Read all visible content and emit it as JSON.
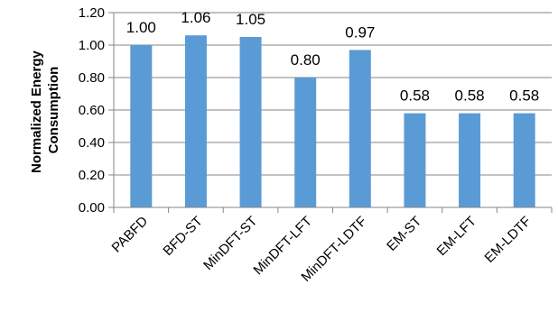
{
  "chart_data": {
    "type": "bar",
    "title": "",
    "xlabel": "",
    "ylabel_lines": [
      "Normalized Energy",
      "Consumption"
    ],
    "categories": [
      "PABFD",
      "BFD-ST",
      "MinDFT-ST",
      "MinDFT-LFT",
      "MinDFT-LDTF",
      "EM-ST",
      "EM-LFT",
      "EM-LDTF"
    ],
    "values": [
      1.0,
      1.06,
      1.05,
      0.8,
      0.97,
      0.58,
      0.58,
      0.58
    ],
    "value_labels": [
      "1.00",
      "1.06",
      "1.05",
      "0.80",
      "0.97",
      "0.58",
      "0.58",
      "0.58"
    ],
    "ylim": [
      0,
      1.2
    ],
    "yticks": [
      0,
      0.2,
      0.4,
      0.6,
      0.8,
      1.0,
      1.2
    ],
    "ytick_labels": [
      "0.00",
      "0.20",
      "0.40",
      "0.60",
      "0.80",
      "1.00",
      "1.20"
    ],
    "grid": true,
    "legend": "none",
    "bar_color": "#5B9BD5",
    "grid_color": "#868686",
    "axis_color": "#868686"
  }
}
